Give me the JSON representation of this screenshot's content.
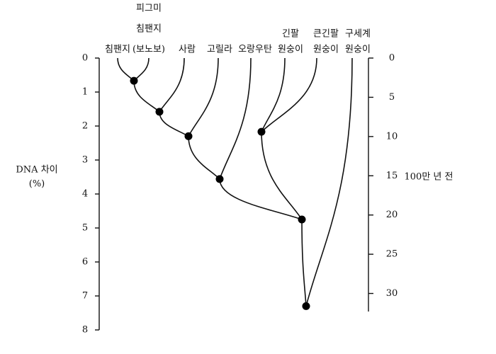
{
  "leaves": [
    {
      "lines": [
        "침팬지"
      ]
    },
    {
      "lines": [
        "피그미",
        "침팬지",
        "(보노보)"
      ]
    },
    {
      "lines": [
        "사람"
      ]
    },
    {
      "lines": [
        "고릴라"
      ]
    },
    {
      "lines": [
        "오랑우탄"
      ]
    },
    {
      "lines": [
        "긴팔",
        "원숭이"
      ]
    },
    {
      "lines": [
        "큰긴팔",
        "원숭이"
      ]
    },
    {
      "lines": [
        "구세계",
        "원숭이"
      ]
    }
  ],
  "nodes": [
    {
      "value": 0.67
    },
    {
      "value": 1.58
    },
    {
      "value": 2.3
    },
    {
      "value": 3.56
    },
    {
      "value": 2.17
    },
    {
      "value": 4.75
    },
    {
      "value": 7.3
    }
  ],
  "left_axis": {
    "label": [
      "DNA 차이",
      "(%)"
    ],
    "ylim": [
      0,
      8
    ],
    "ticks": [
      0,
      1,
      2,
      3,
      4,
      5,
      6,
      7,
      8
    ]
  },
  "right_axis": {
    "label": "100만 년 전",
    "ylim": [
      0,
      32.3
    ],
    "ticks": [
      0,
      5,
      10,
      15,
      20,
      25,
      30
    ]
  }
}
